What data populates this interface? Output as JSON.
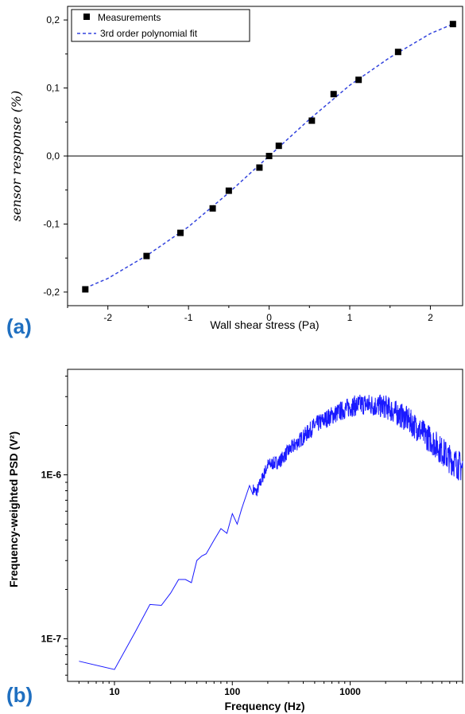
{
  "chart_data": [
    {
      "panel_label": "(a)",
      "type": "scatter",
      "xlabel": "Wall shear stress (Pa)",
      "ylabel": "sensor response (%)",
      "xlim": [
        -2.5,
        2.4
      ],
      "ylim": [
        -0.22,
        0.22
      ],
      "x_ticks": [
        -2,
        -1,
        0,
        1,
        2
      ],
      "x_tick_labels": [
        "-2",
        "-1",
        "0",
        "1",
        "2"
      ],
      "y_ticks": [
        -0.2,
        -0.1,
        0.0,
        0.1,
        0.2
      ],
      "y_tick_labels": [
        "-0,2",
        "-0,1",
        "0,0",
        "0,1",
        "0,2"
      ],
      "legend_position": "top-left",
      "zero_line": true,
      "series": [
        {
          "name": "Measurements",
          "marker": "square",
          "color": "#000000",
          "x": [
            -2.28,
            -1.52,
            -1.1,
            -0.7,
            -0.5,
            -0.12,
            0.0,
            0.12,
            0.53,
            0.8,
            1.11,
            1.6,
            2.28
          ],
          "y": [
            -0.196,
            -0.147,
            -0.113,
            -0.077,
            -0.051,
            -0.017,
            0.0,
            0.015,
            0.052,
            0.091,
            0.112,
            0.153,
            0.194
          ]
        },
        {
          "name": "3rd order polynomial fit",
          "style": "dashed",
          "color": "#3344dd",
          "x": [
            -2.28,
            -2.0,
            -1.5,
            -1.0,
            -0.5,
            0.0,
            0.5,
            1.0,
            1.5,
            2.0,
            2.28
          ],
          "y": [
            -0.194,
            -0.18,
            -0.145,
            -0.104,
            -0.054,
            0.0,
            0.054,
            0.104,
            0.145,
            0.18,
            0.194
          ]
        }
      ]
    },
    {
      "panel_label": "(b)",
      "type": "line",
      "xlabel": "Frequency (Hz)",
      "ylabel": "Frequency-weighted PSD (V²)",
      "xscale": "log",
      "yscale": "log",
      "xlim": [
        4,
        9000
      ],
      "ylim": [
        5.5e-08,
        4.4e-06
      ],
      "x_ticks": [
        10,
        100,
        1000
      ],
      "x_tick_labels": [
        "10",
        "100",
        "1000"
      ],
      "y_ticks": [
        1e-07,
        1e-06
      ],
      "y_tick_labels": [
        "1E-7",
        "1E-6"
      ],
      "series": [
        {
          "color": "#1a1aff",
          "x": [
            5,
            10,
            15,
            20,
            25,
            30,
            35,
            40,
            45,
            50,
            55,
            60,
            70,
            80,
            90,
            100,
            110,
            120,
            140,
            160,
            200,
            250,
            300,
            400,
            500,
            700,
            1000,
            1300,
            2000,
            3000,
            5000,
            7000,
            9000
          ],
          "y": [
            7.3e-08,
            6.5e-08,
            1.1e-07,
            1.62e-07,
            1.6e-07,
            1.9e-07,
            2.3e-07,
            2.3e-07,
            2.2e-07,
            3e-07,
            3.2e-07,
            3.3e-07,
            4e-07,
            4.7e-07,
            4.4e-07,
            5.8e-07,
            5e-07,
            6.2e-07,
            8.6e-07,
            7.8e-07,
            1.15e-06,
            1.2e-06,
            1.4e-06,
            1.7e-06,
            2e-06,
            2.3e-06,
            2.6e-06,
            2.7e-06,
            2.6e-06,
            2.2e-06,
            1.6e-06,
            1.25e-06,
            1.1e-06
          ]
        }
      ]
    }
  ]
}
